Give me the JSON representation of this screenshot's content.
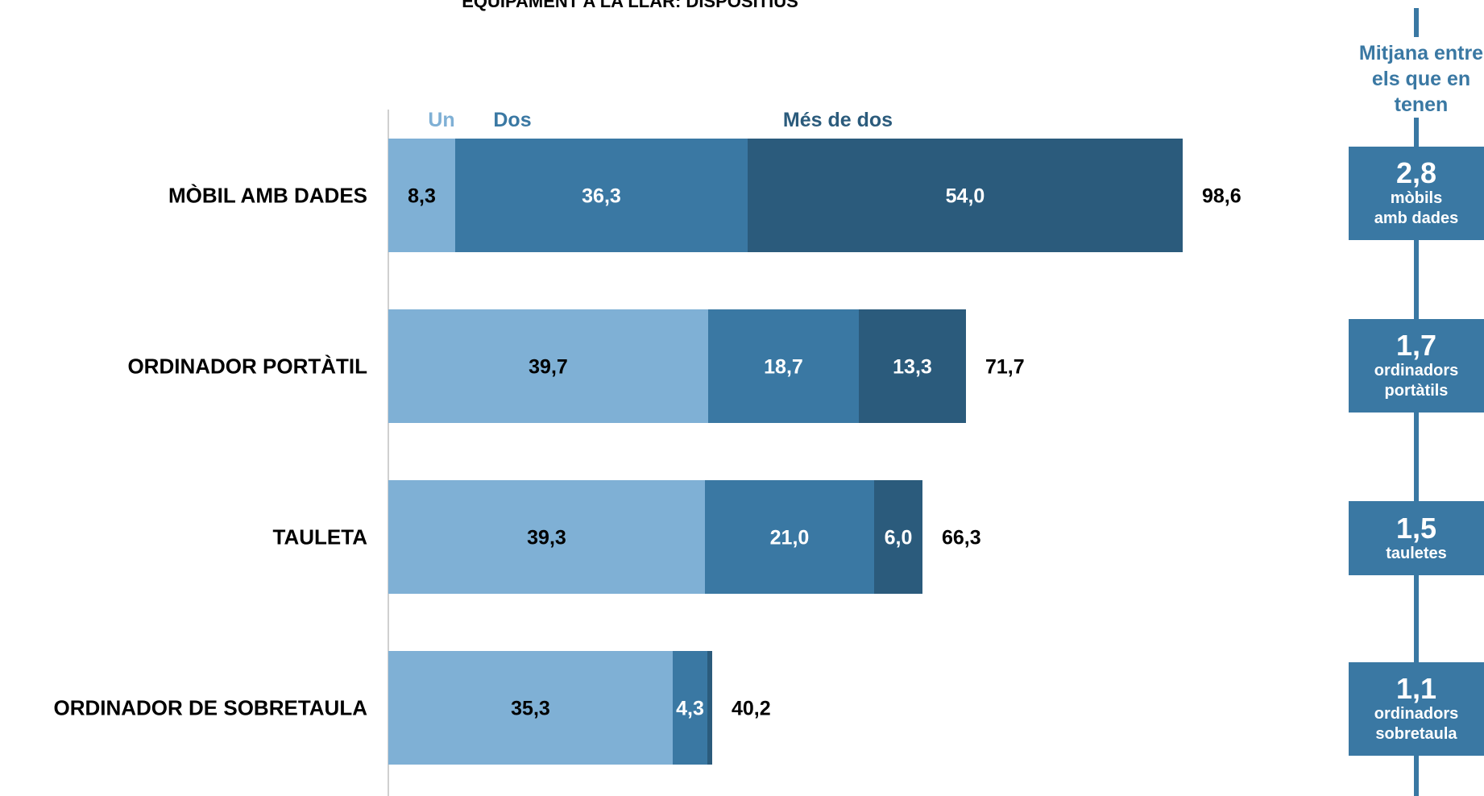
{
  "colors": {
    "un": "#7fb0d5",
    "dos": "#3a78a3",
    "mes_de_dos": "#2b5b7c",
    "axis": "#d0d0d0",
    "mean_panel": "#3a78a3"
  },
  "chart_data": {
    "type": "bar",
    "orientation": "horizontal",
    "stacked": true,
    "title": "EQUIPAMENT A LA LLAR: DISPOSITIUS",
    "categories": [
      "MÒBIL AMB DADES",
      "ORDINADOR PORTÀTIL",
      "TAULETA",
      "ORDINADOR DE SOBRETAULA"
    ],
    "series": [
      {
        "name": "Un",
        "values": [
          8.3,
          39.7,
          39.3,
          35.3
        ],
        "labels": [
          "8,3",
          "39,7",
          "39,3",
          "35,3"
        ]
      },
      {
        "name": "Dos",
        "values": [
          36.3,
          18.7,
          21.0,
          4.3
        ],
        "labels": [
          "36,3",
          "18,7",
          "21,0",
          "4,3"
        ]
      },
      {
        "name": "Més de dos",
        "values": [
          54.0,
          13.3,
          6.0,
          0.6
        ],
        "labels": [
          "54,0",
          "13,3",
          "6,0",
          ""
        ]
      }
    ],
    "totals": [
      "98,6",
      "71,7",
      "66,3",
      "40,2"
    ],
    "xlim": [
      0,
      100
    ],
    "grid": false,
    "legend": "top"
  },
  "mean_panel": {
    "header": "Mitjana entre\nels que en\ntenen",
    "items": [
      {
        "value": "2,8",
        "unit": "mòbils\namb dades"
      },
      {
        "value": "1,7",
        "unit": "ordinadors\nportàtils"
      },
      {
        "value": "1,5",
        "unit": "tauletes"
      },
      {
        "value": "1,1",
        "unit": "ordinadors\nsobretaula"
      }
    ]
  }
}
